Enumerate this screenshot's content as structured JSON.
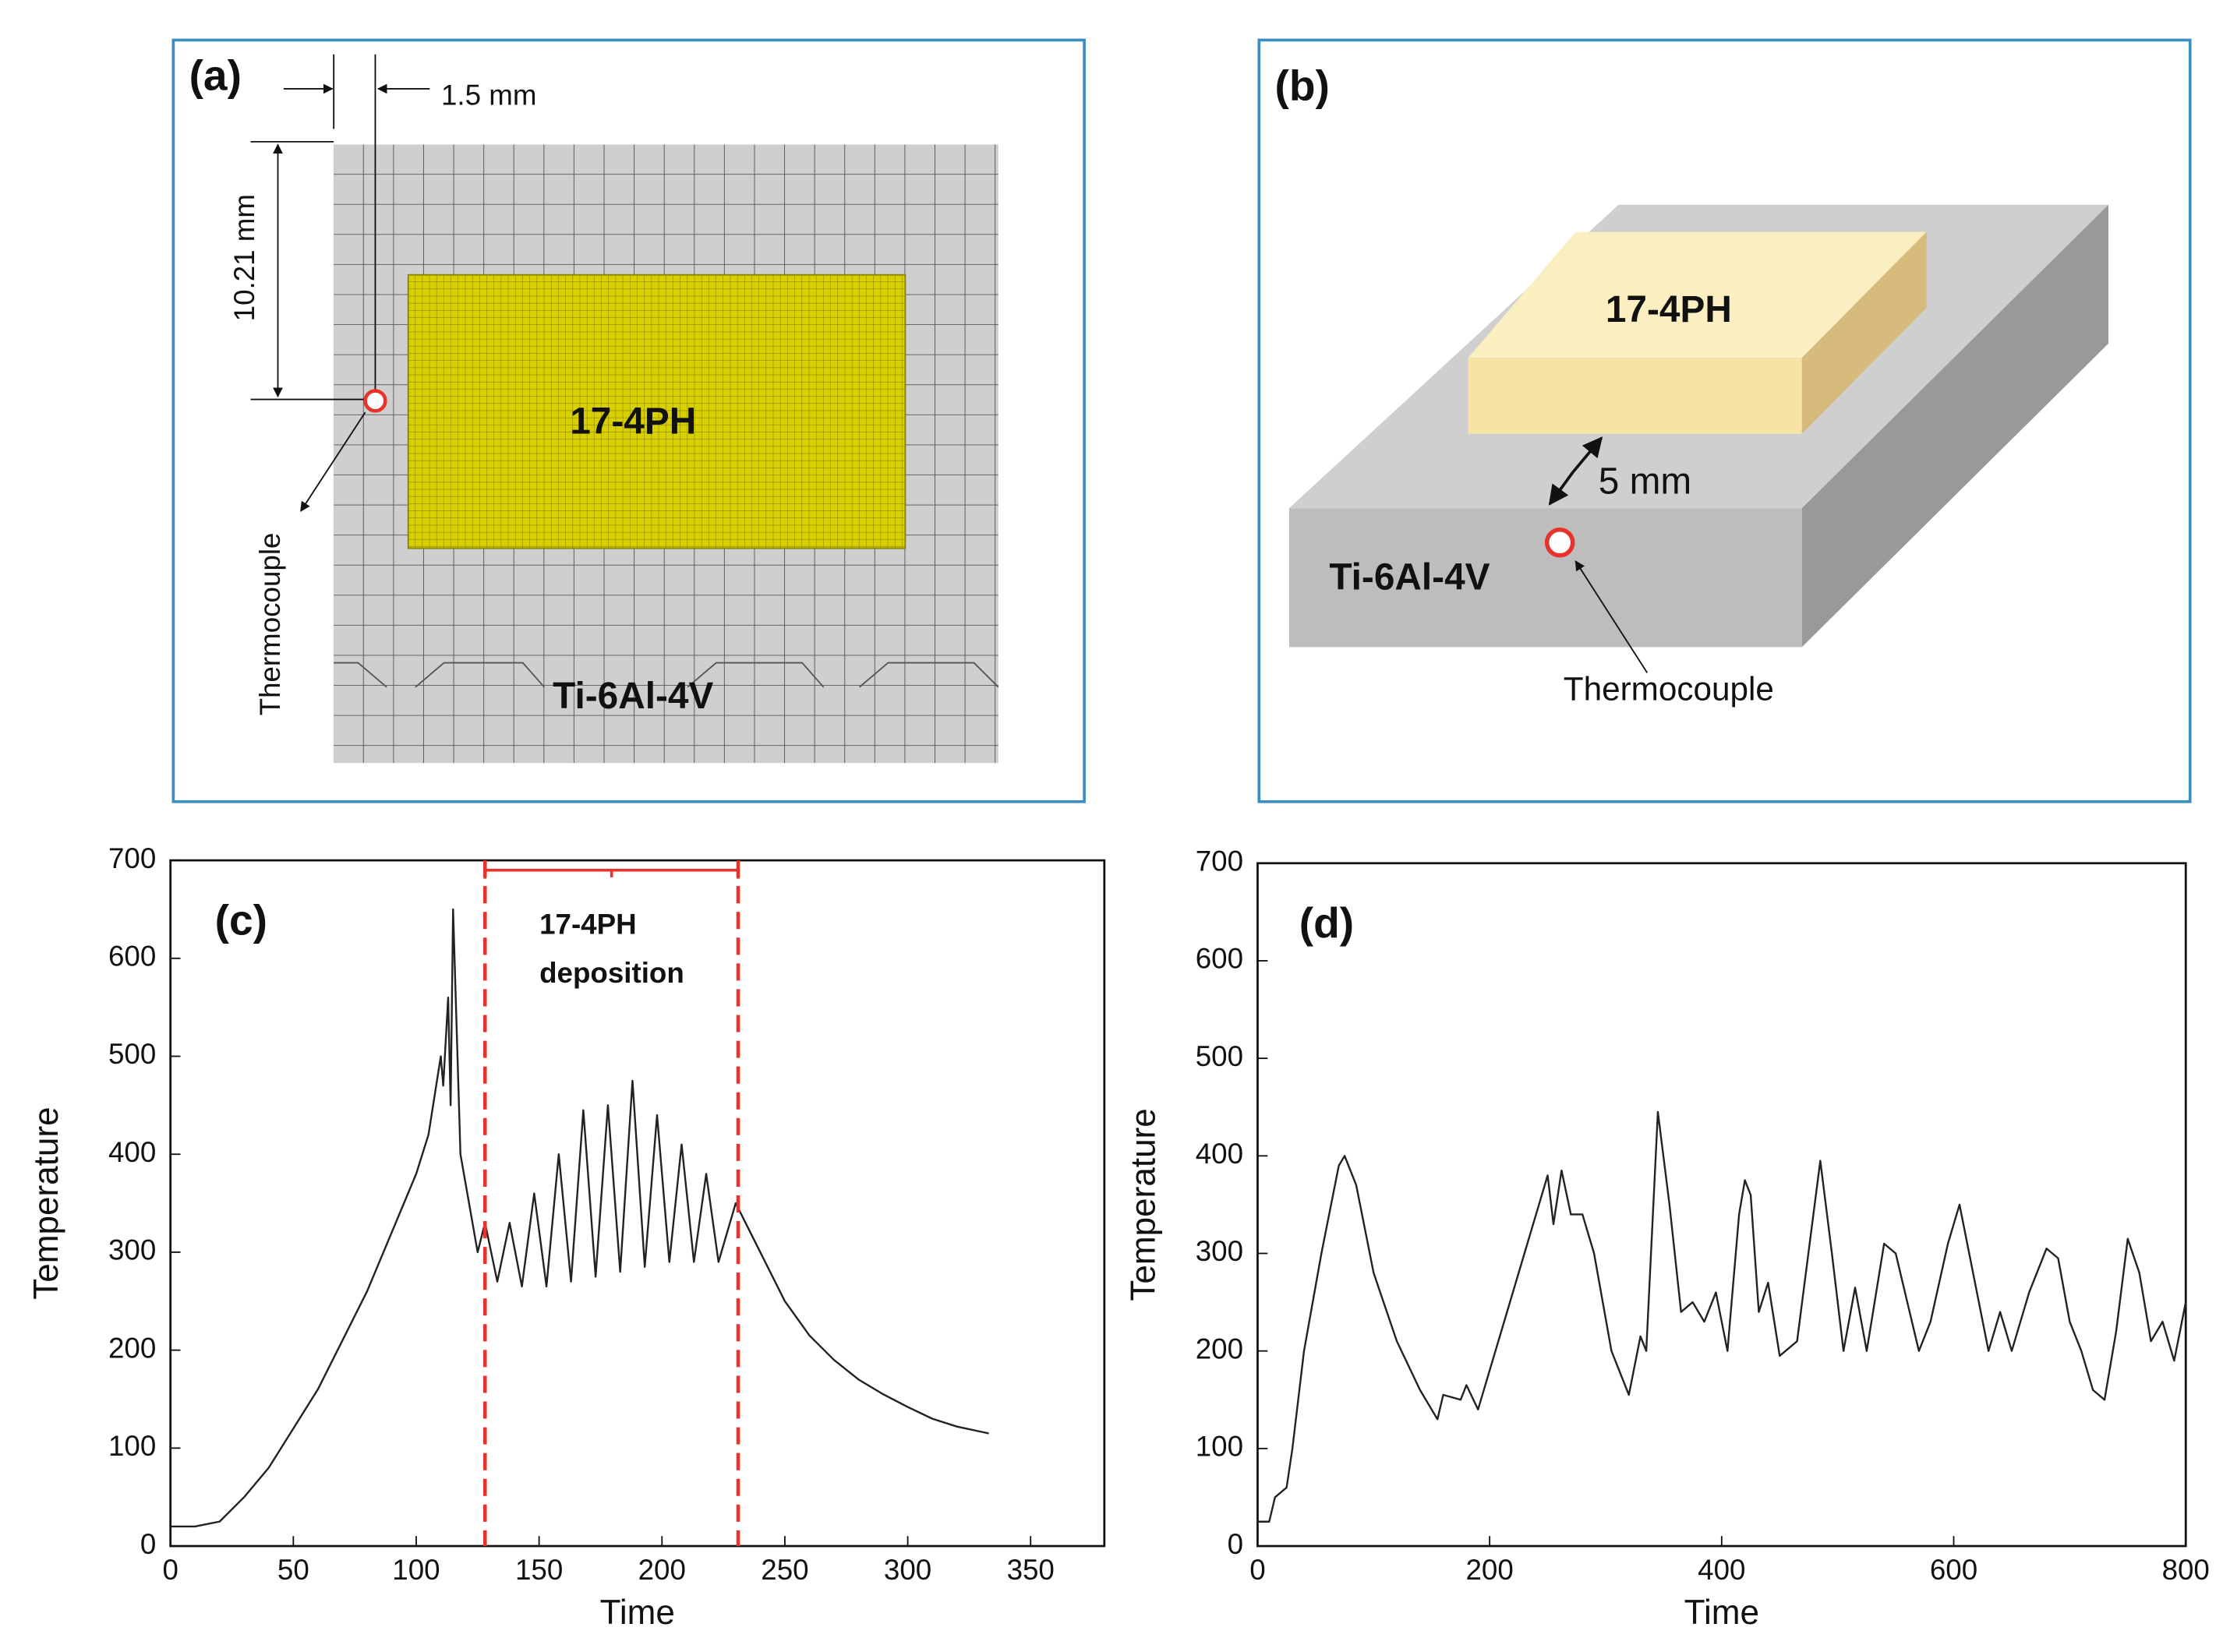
{
  "panels": {
    "a": {
      "label": "(a)",
      "dim_x": "1.5 mm",
      "dim_y": "10.21 mm",
      "deposit": "17-4PH",
      "substrate": "Ti-6Al-4V",
      "sensor": "Thermocouple"
    },
    "b": {
      "label": "(b)",
      "deposit": "17-4PH",
      "distance": "5 mm",
      "substrate": "Ti-6Al-4V",
      "sensor": "Thermocouple"
    }
  },
  "chart_data": [
    {
      "type": "line",
      "panel": "(c)",
      "xlabel": "Time",
      "ylabel": "Temperature",
      "xlim": [
        0,
        380
      ],
      "ylim": [
        0,
        700
      ],
      "xticks": [
        0,
        50,
        100,
        150,
        200,
        250,
        300,
        350
      ],
      "yticks": [
        0,
        100,
        200,
        300,
        400,
        500,
        600,
        700
      ],
      "color": "#222222",
      "x": [
        0,
        10,
        20,
        30,
        40,
        50,
        60,
        70,
        80,
        90,
        100,
        105,
        110,
        111,
        113,
        114,
        115,
        118,
        125,
        128,
        133,
        138,
        143,
        148,
        153,
        158,
        163,
        168,
        173,
        178,
        183,
        188,
        193,
        198,
        203,
        208,
        213,
        218,
        223,
        230,
        240,
        250,
        260,
        270,
        280,
        290,
        300,
        310,
        320,
        333
      ],
      "values": [
        20,
        20,
        25,
        50,
        80,
        120,
        160,
        210,
        260,
        320,
        380,
        420,
        500,
        470,
        560,
        450,
        650,
        400,
        300,
        330,
        270,
        330,
        265,
        360,
        265,
        400,
        270,
        445,
        275,
        450,
        280,
        475,
        285,
        440,
        290,
        410,
        290,
        380,
        290,
        350,
        300,
        250,
        215,
        190,
        170,
        155,
        142,
        130,
        122,
        115
      ],
      "vlines": [
        128,
        231
      ],
      "vline_color": "#e8322b",
      "bracket_y": 690,
      "annotation": [
        "17-4PH",
        "deposition"
      ]
    },
    {
      "type": "line",
      "panel": "(d)",
      "xlabel": "Time",
      "ylabel": "Temperature",
      "xlim": [
        0,
        800
      ],
      "ylim": [
        0,
        700
      ],
      "xticks": [
        0,
        200,
        400,
        600,
        800
      ],
      "yticks": [
        0,
        100,
        200,
        300,
        400,
        500,
        600,
        700
      ],
      "color": "#222222",
      "x": [
        0,
        10,
        15,
        25,
        30,
        40,
        55,
        70,
        75,
        85,
        100,
        120,
        140,
        155,
        160,
        175,
        180,
        190,
        200,
        215,
        230,
        240,
        250,
        255,
        262,
        270,
        280,
        290,
        305,
        320,
        330,
        335,
        345,
        355,
        365,
        375,
        385,
        395,
        405,
        415,
        420,
        425,
        432,
        440,
        450,
        465,
        485,
        495,
        505,
        515,
        525,
        540,
        550,
        560,
        570,
        580,
        595,
        605,
        620,
        630,
        640,
        650,
        665,
        680,
        690,
        700,
        710,
        720,
        730,
        740,
        750,
        760,
        770,
        780,
        790,
        800
      ],
      "values": [
        25,
        25,
        50,
        60,
        100,
        200,
        300,
        390,
        400,
        370,
        280,
        210,
        160,
        130,
        155,
        150,
        165,
        140,
        180,
        240,
        300,
        340,
        380,
        330,
        385,
        340,
        340,
        300,
        200,
        155,
        215,
        200,
        445,
        350,
        240,
        250,
        230,
        260,
        200,
        340,
        375,
        360,
        240,
        270,
        195,
        210,
        395,
        300,
        200,
        265,
        200,
        310,
        300,
        250,
        200,
        230,
        310,
        350,
        260,
        200,
        240,
        200,
        260,
        305,
        295,
        230,
        200,
        160,
        150,
        220,
        315,
        280,
        210,
        230,
        190,
        250
      ]
    }
  ]
}
